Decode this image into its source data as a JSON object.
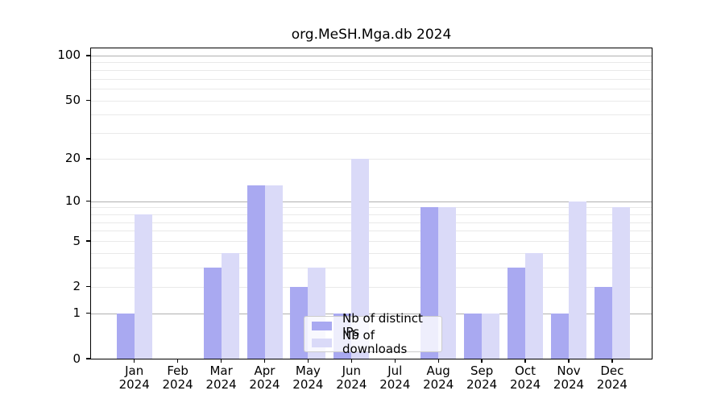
{
  "title": "org.MeSH.Mga.db 2024",
  "colors": {
    "ips_bar": "#a9a9f1",
    "downloads_bar": "#dadaf8",
    "grid_major": "#b0b0b0",
    "grid_minor": "#e9e9e9",
    "axis": "#000000",
    "legend_border": "#cccccc"
  },
  "legend": {
    "items": [
      {
        "label": "Nb of distinct IPs",
        "color_key": "ips_bar"
      },
      {
        "label": "Nb of downloads",
        "color_key": "downloads_bar"
      }
    ]
  },
  "chart_data": {
    "type": "bar",
    "title": "org.MeSH.Mga.db 2024",
    "categories": [
      "Jan 2024",
      "Feb 2024",
      "Mar 2024",
      "Apr 2024",
      "May 2024",
      "Jun 2024",
      "Jul 2024",
      "Aug 2024",
      "Sep 2024",
      "Oct 2024",
      "Nov 2024",
      "Dec 2024"
    ],
    "series": [
      {
        "name": "Nb of distinct IPs",
        "values": [
          1,
          0,
          3,
          13,
          2,
          1,
          0,
          9,
          1,
          3,
          1,
          2
        ],
        "color_key": "ips_bar"
      },
      {
        "name": "Nb of downloads",
        "values": [
          8,
          0,
          4,
          13,
          3,
          20,
          0,
          9,
          1,
          4,
          10,
          9
        ],
        "color_key": "downloads_bar"
      }
    ],
    "xlabel": "",
    "ylabel": "",
    "yscale": "log1p",
    "ylim": [
      0,
      113
    ],
    "yticks": [
      100,
      50,
      20,
      10,
      5,
      2,
      1,
      0
    ],
    "major_gridlines": [
      1,
      10,
      100
    ],
    "minor_gridlines": [
      2,
      3,
      4,
      5,
      6,
      7,
      8,
      9,
      20,
      30,
      40,
      50,
      60,
      70,
      80,
      90
    ],
    "grid": true,
    "legend_position": "lower center"
  }
}
